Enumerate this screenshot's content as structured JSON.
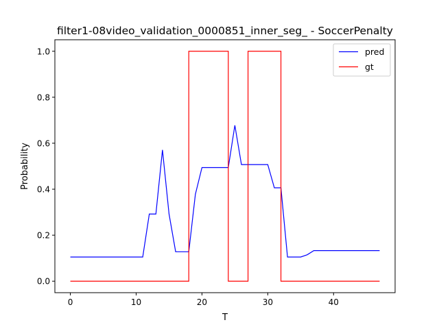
{
  "chart_data": {
    "type": "line",
    "title": "filter1-08video_validation_0000851_inner_seg_ - SoccerPenalty",
    "xlabel": "T",
    "ylabel": "Probability",
    "xlim": [
      -2.35,
      49.35
    ],
    "ylim": [
      -0.05,
      1.05
    ],
    "xticks": [
      0,
      10,
      20,
      30,
      40
    ],
    "yticks": [
      0.0,
      0.2,
      0.4,
      0.6,
      0.8,
      1.0
    ],
    "ytick_labels": [
      "0.0",
      "0.2",
      "0.4",
      "0.6",
      "0.8",
      "1.0"
    ],
    "grid": false,
    "legend_position": "top-right",
    "series": [
      {
        "name": "pred",
        "color": "#0000ff",
        "x": [
          0,
          1,
          2,
          3,
          4,
          5,
          6,
          7,
          8,
          9,
          10,
          11,
          12,
          13,
          14,
          15,
          16,
          17,
          18,
          19,
          20,
          21,
          22,
          23,
          24,
          25,
          26,
          27,
          28,
          29,
          30,
          31,
          32,
          33,
          34,
          35,
          36,
          37,
          38,
          39,
          40,
          41,
          42,
          43,
          44,
          45,
          46,
          47
        ],
        "y": [
          0.105,
          0.105,
          0.105,
          0.105,
          0.105,
          0.105,
          0.105,
          0.105,
          0.105,
          0.105,
          0.105,
          0.105,
          0.292,
          0.292,
          0.571,
          0.292,
          0.128,
          0.128,
          0.128,
          0.378,
          0.494,
          0.494,
          0.494,
          0.494,
          0.494,
          0.678,
          0.507,
          0.507,
          0.507,
          0.507,
          0.507,
          0.406,
          0.406,
          0.105,
          0.105,
          0.105,
          0.115,
          0.133,
          0.133,
          0.133,
          0.133,
          0.133,
          0.133,
          0.133,
          0.133,
          0.133,
          0.133,
          0.133
        ]
      },
      {
        "name": "gt",
        "color": "#ff0000",
        "step": true,
        "x": [
          0,
          1,
          2,
          3,
          4,
          5,
          6,
          7,
          8,
          9,
          10,
          11,
          12,
          13,
          14,
          15,
          16,
          17,
          18,
          19,
          20,
          21,
          22,
          23,
          24,
          25,
          26,
          27,
          28,
          29,
          30,
          31,
          32,
          33,
          34,
          35,
          36,
          37,
          38,
          39,
          40,
          41,
          42,
          43,
          44,
          45,
          46,
          47
        ],
        "y": [
          0,
          0,
          0,
          0,
          0,
          0,
          0,
          0,
          0,
          0,
          0,
          0,
          0,
          0,
          0,
          0,
          0,
          0,
          1,
          1,
          1,
          1,
          1,
          1,
          0,
          0,
          0,
          1,
          1,
          1,
          1,
          1,
          0,
          0,
          0,
          0,
          0,
          0,
          0,
          0,
          0,
          0,
          0,
          0,
          0,
          0,
          0,
          0
        ]
      }
    ]
  }
}
